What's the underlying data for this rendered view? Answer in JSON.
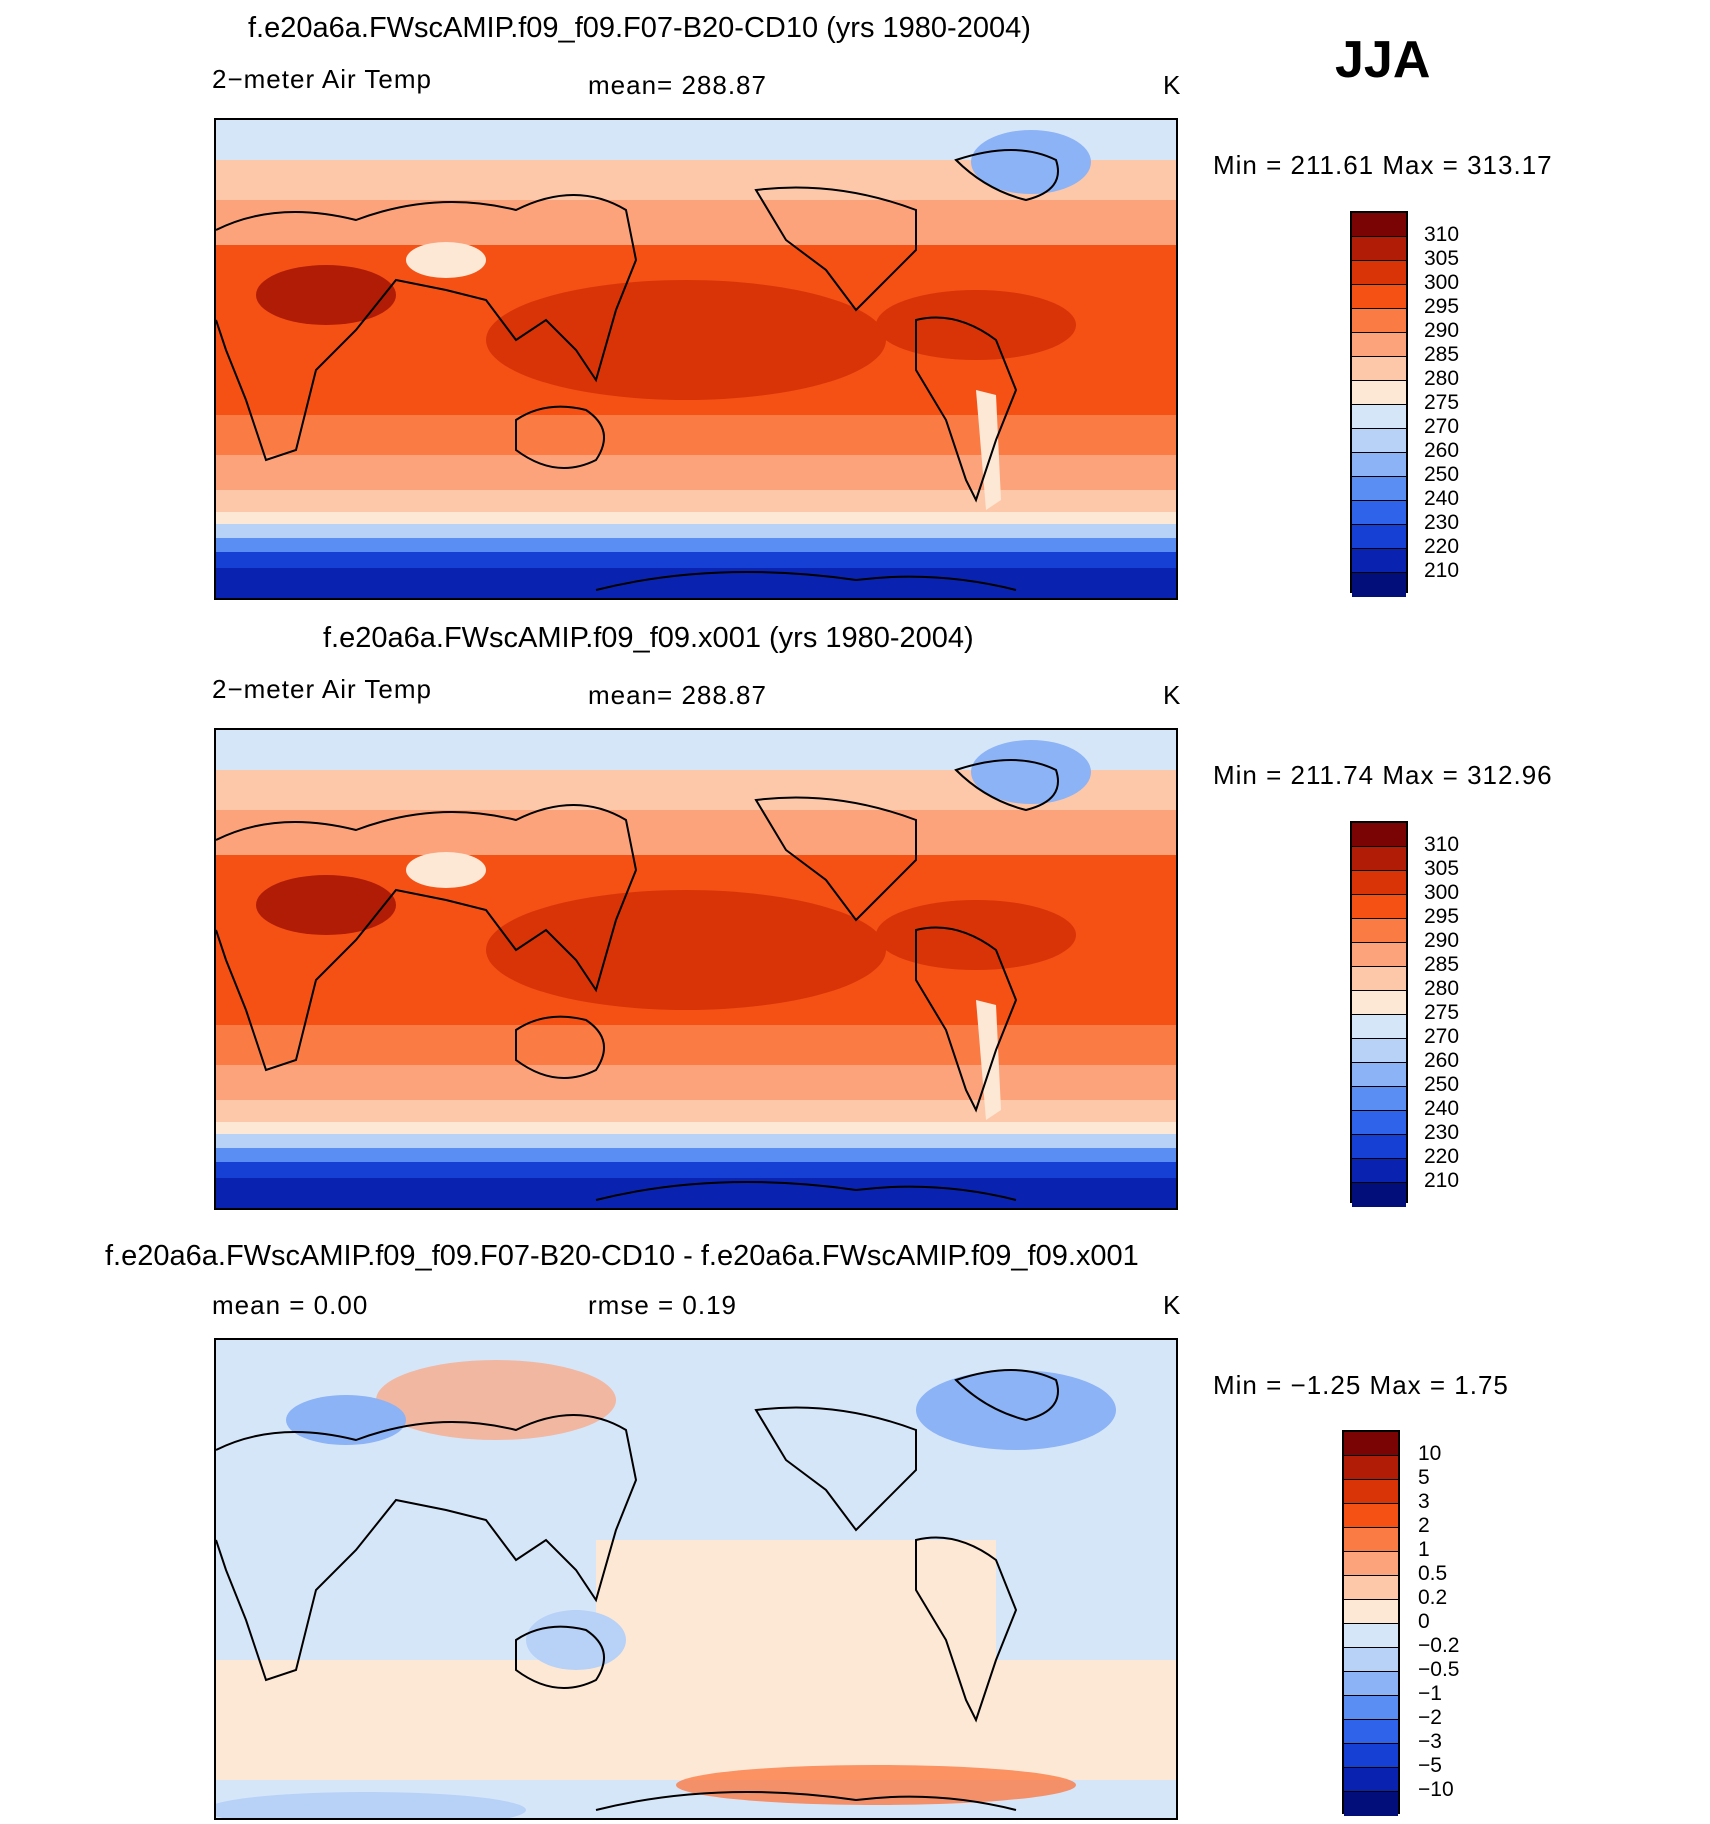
{
  "season": "JJA",
  "panels": [
    {
      "title": "f.e20a6a.FWscAMIP.f09_f09.F07-B20-CD10 (yrs 1980-2004)",
      "variable": "2−meter Air Temp",
      "stat": "mean=  288.87",
      "stat2": "",
      "units": "K",
      "minmax": "Min  =  211.61  Max  =  313.17",
      "min": 211.61,
      "max": 313.17,
      "legend_labels": [
        "310",
        "305",
        "300",
        "295",
        "290",
        "285",
        "280",
        "275",
        "270",
        "260",
        "250",
        "240",
        "230",
        "220",
        "210"
      ]
    },
    {
      "title": "f.e20a6a.FWscAMIP.f09_f09.x001 (yrs 1980-2004)",
      "variable": "2−meter Air Temp",
      "stat": "mean=  288.87",
      "stat2": "",
      "units": "K",
      "minmax": "Min  =  211.74  Max  =  312.96",
      "min": 211.74,
      "max": 312.96,
      "legend_labels": [
        "310",
        "305",
        "300",
        "295",
        "290",
        "285",
        "280",
        "275",
        "270",
        "260",
        "250",
        "240",
        "230",
        "220",
        "210"
      ]
    },
    {
      "title": "f.e20a6a.FWscAMIP.f09_f09.F07-B20-CD10 - f.e20a6a.FWscAMIP.f09_f09.x001",
      "variable": "mean  =     0.00",
      "stat": "rmse  =     0.19",
      "stat2": "",
      "units": "K",
      "minmax": "Min  =    −1.25  Max  =     1.75",
      "min": -1.25,
      "max": 1.75,
      "legend_labels": [
        "10",
        "5",
        "3",
        "2",
        "1",
        "0.5",
        "0.2",
        "0",
        "−0.2",
        "−0.5",
        "−1",
        "−2",
        "−3",
        "−5",
        "−10"
      ]
    }
  ],
  "colors": {
    "temp_scale": [
      "#7a0403",
      "#b01c05",
      "#d93407",
      "#f55114",
      "#fb7b45",
      "#fca37c",
      "#fdc8a9",
      "#fde8d6",
      "#d6e6f9",
      "#b7d1f7",
      "#8cb3f5",
      "#5b8ef3",
      "#2e63ea",
      "#1640d4",
      "#0a22b0",
      "#020f7a"
    ],
    "diff_scale": [
      "#7a0403",
      "#b01c05",
      "#d93407",
      "#f55114",
      "#fb7b45",
      "#fca37c",
      "#fdc8a9",
      "#fde8d6",
      "#d6e6f9",
      "#b7d1f7",
      "#8cb3f5",
      "#5b8ef3",
      "#2e63ea",
      "#1640d4",
      "#0a22b0",
      "#020f7a"
    ]
  }
}
